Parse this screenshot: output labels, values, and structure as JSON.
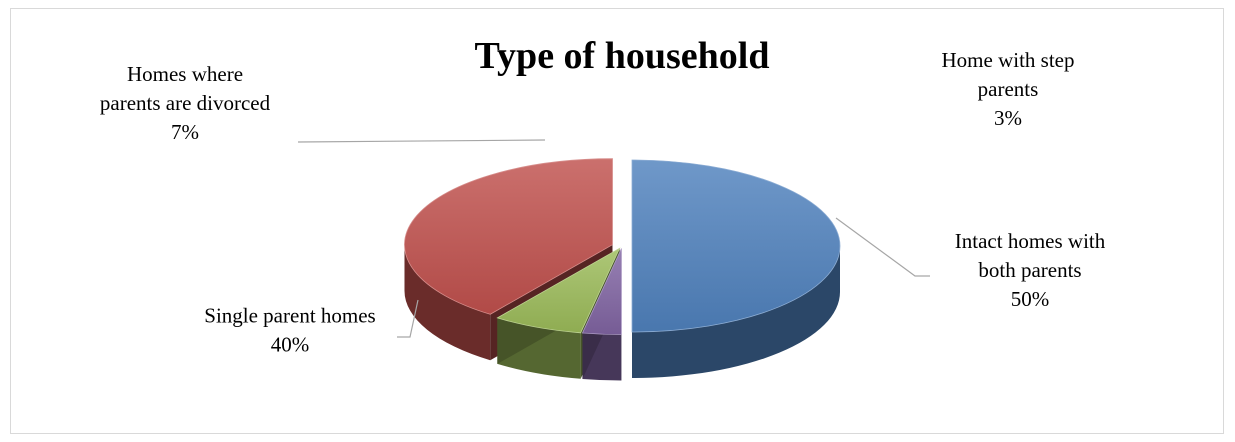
{
  "chart_data": {
    "type": "pie",
    "title": "Type of household",
    "slices": [
      {
        "label": [
          "Intact homes with",
          "both parents"
        ],
        "value": 50,
        "display": "50%",
        "color": "#4f81bd"
      },
      {
        "label": [
          "Home with step",
          "parents"
        ],
        "value": 3,
        "display": "3%",
        "color": "#8064a2"
      },
      {
        "label": [
          "Homes where",
          "parents are divorced"
        ],
        "value": 7,
        "display": "7%",
        "color": "#9bbb59"
      },
      {
        "label": [
          "Single parent homes"
        ],
        "value": 40,
        "display": "40%",
        "color": "#c0504d"
      }
    ]
  }
}
